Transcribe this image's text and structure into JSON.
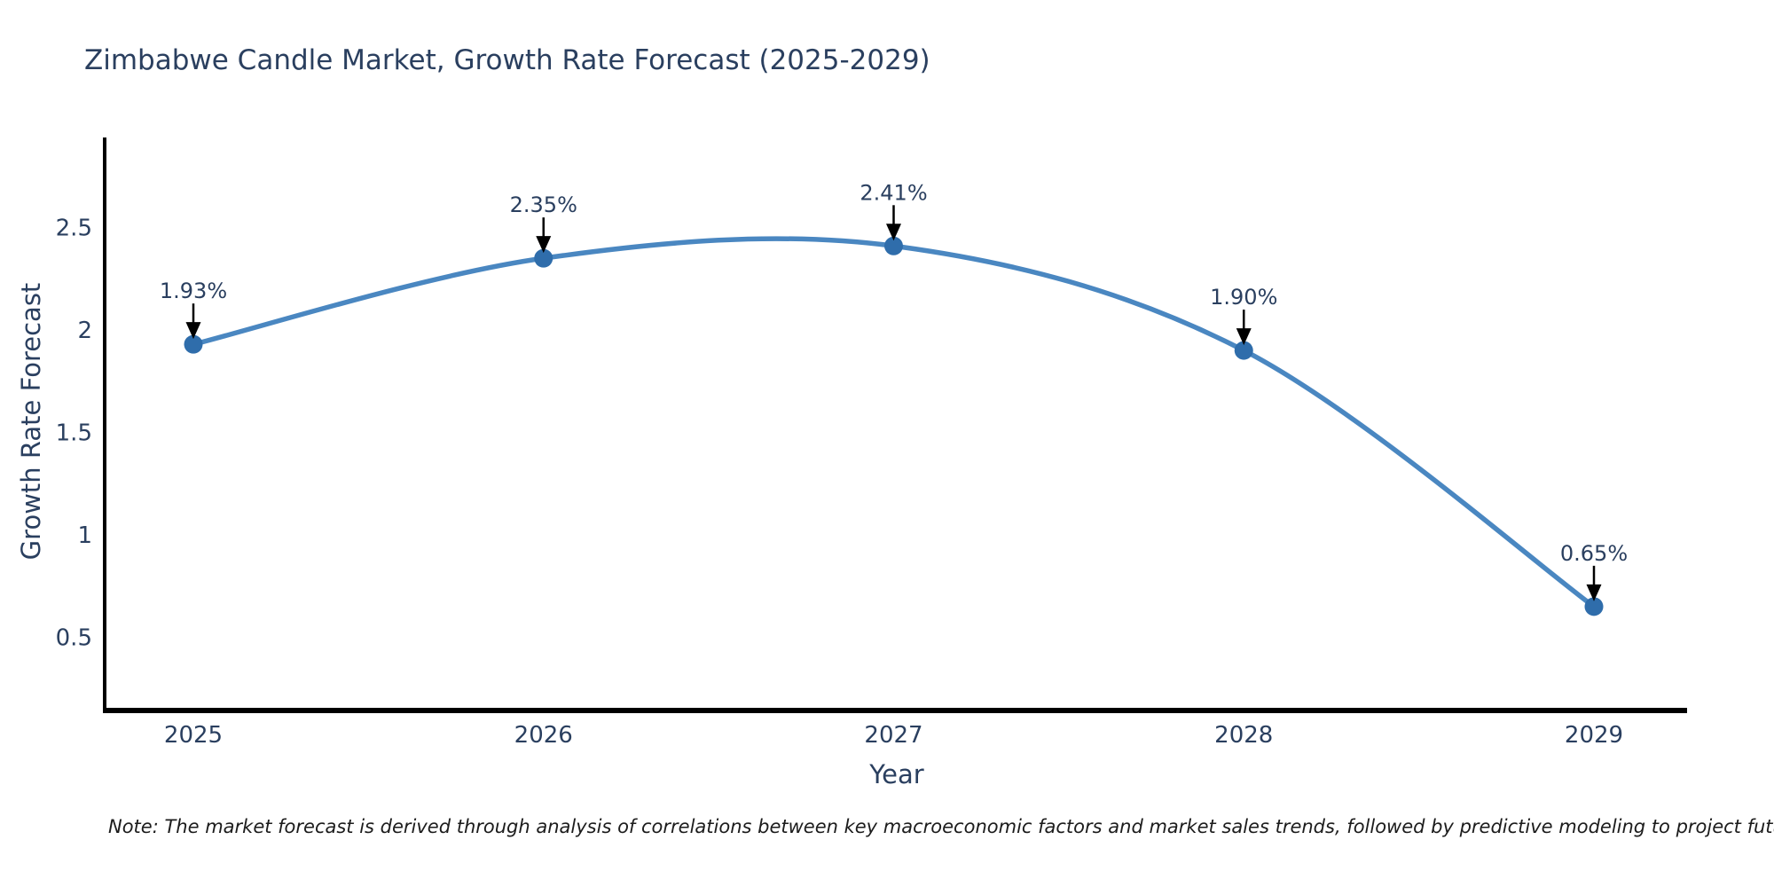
{
  "chart": {
    "title": "Zimbabwe Candle Market, Growth Rate Forecast (2025-2029)",
    "xlabel": "Year",
    "ylabel": "Growth Rate Forecast",
    "note": "Note: The market forecast is derived through analysis of correlations between key macroeconomic factors and market sales trends, followed by predictive modeling to project future sales"
  },
  "chart_data": {
    "type": "line",
    "title": "Zimbabwe Candle Market, Growth Rate Forecast (2025-2029)",
    "xlabel": "Year",
    "ylabel": "Growth Rate Forecast",
    "x": [
      2025,
      2026,
      2027,
      2028,
      2029
    ],
    "series": [
      {
        "name": "Growth Rate Forecast",
        "values": [
          1.93,
          2.35,
          2.41,
          1.9,
          0.65
        ]
      }
    ],
    "point_labels": [
      "1.93%",
      "2.35%",
      "2.41%",
      "1.90%",
      "0.65%"
    ],
    "y_ticks": [
      0.5,
      1,
      1.5,
      2,
      2.5
    ],
    "ylim": [
      0.14,
      2.94
    ],
    "grid": false,
    "legend": false,
    "line_shape": "spline",
    "colors": {
      "line": "#4a87c1",
      "marker": "#2f6dab",
      "axis": "#000000",
      "label_text": "#2a3f5f",
      "arrow": "#000000"
    }
  }
}
